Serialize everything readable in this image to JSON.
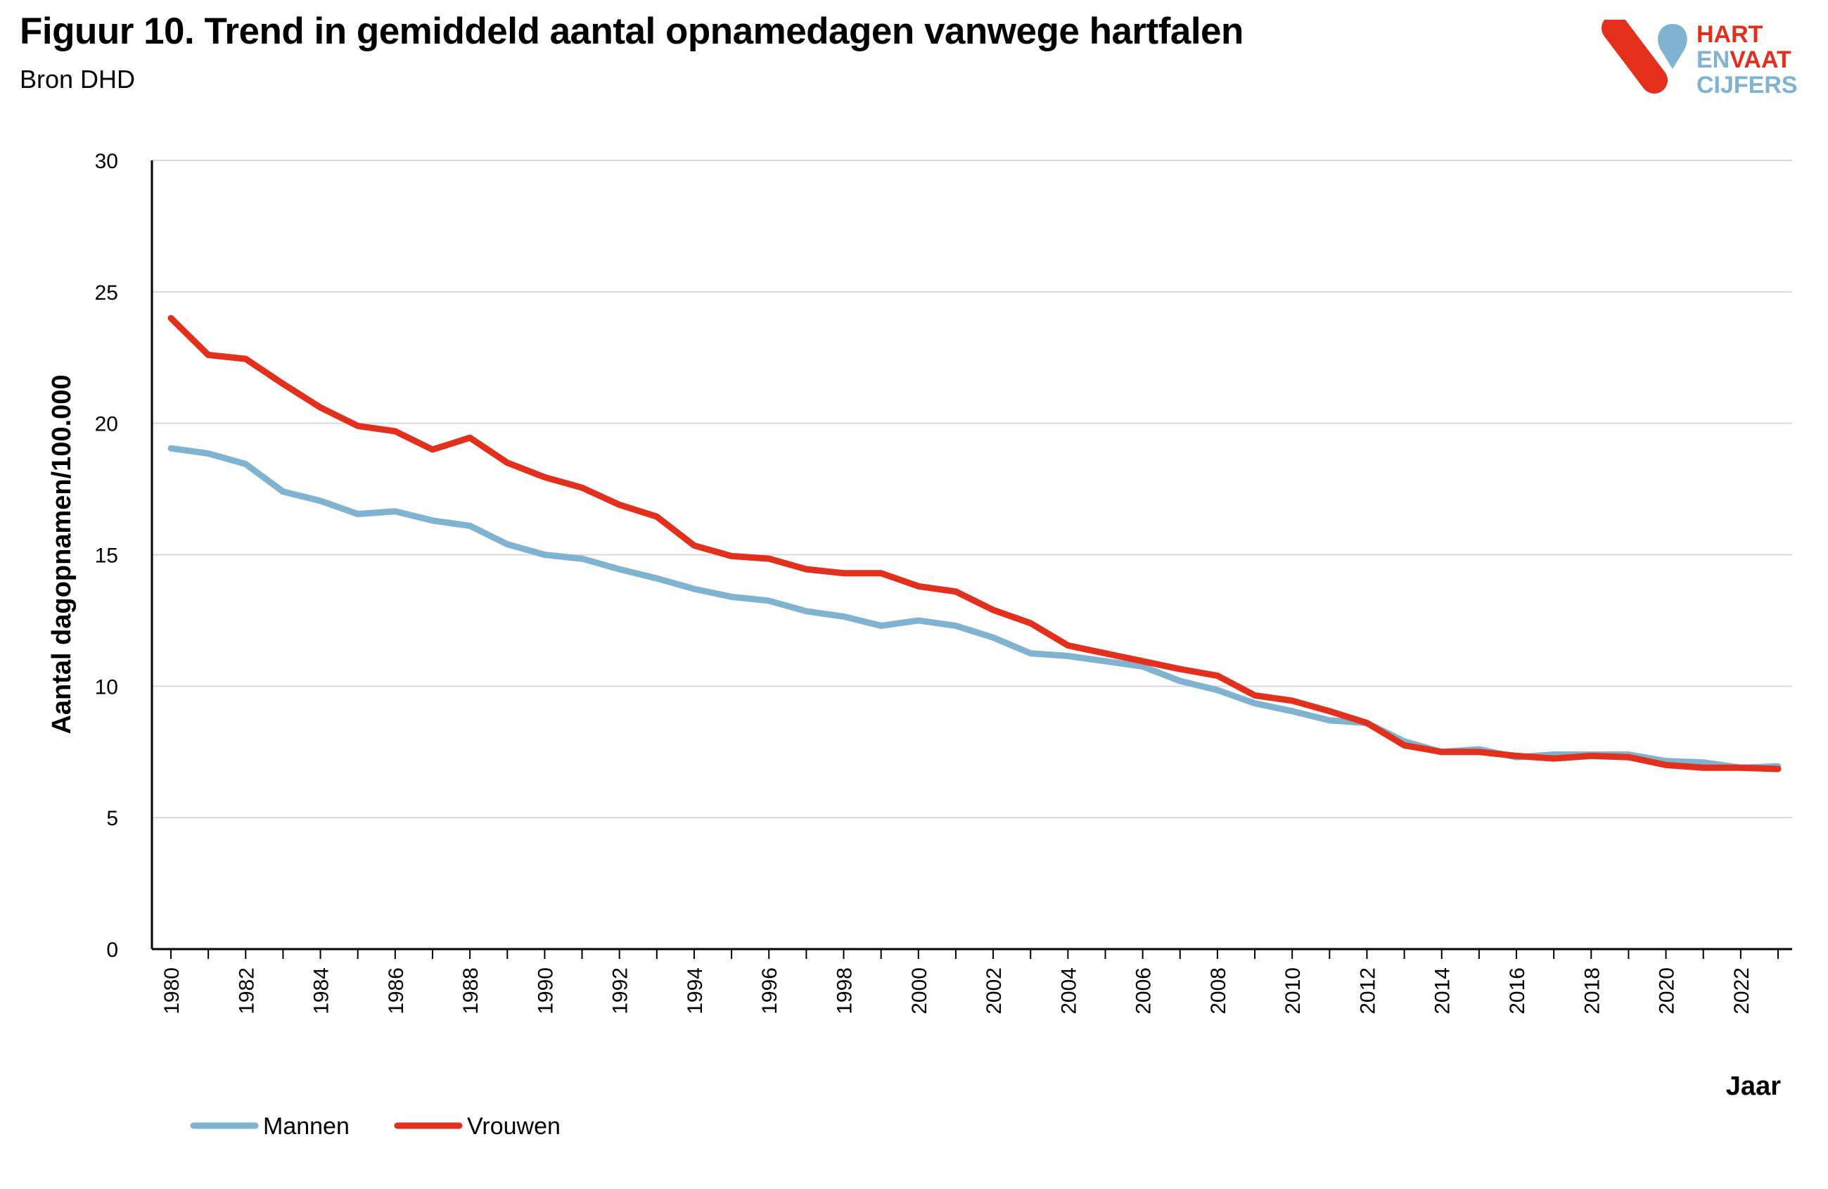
{
  "header": {
    "title": "Figuur 10. Trend in gemiddeld aantal opnamedagen vanwege hartfalen",
    "subtitle": "Bron DHD"
  },
  "logo": {
    "line1": "HART",
    "line2a": "EN",
    "line2b": "VAAT",
    "line3": "CIJFERS",
    "colors": {
      "red": "#e3301c",
      "blue": "#7fb3cf"
    }
  },
  "chart_data": {
    "type": "line",
    "ylabel": "Aantal dagopnamen/100.000",
    "xlabel": "Jaar",
    "ylim": [
      0,
      30
    ],
    "yticks": [
      0,
      5,
      10,
      15,
      20,
      25,
      30
    ],
    "grid": true,
    "legend_position": "bottom-left",
    "x": [
      1980,
      1981,
      1982,
      1983,
      1984,
      1985,
      1986,
      1987,
      1988,
      1989,
      1990,
      1991,
      1992,
      1993,
      1994,
      1995,
      1996,
      1997,
      1998,
      1999,
      2000,
      2001,
      2002,
      2003,
      2004,
      2005,
      2006,
      2007,
      2008,
      2009,
      2010,
      2011,
      2012,
      2013,
      2014,
      2015,
      2016,
      2017,
      2018,
      2019,
      2020,
      2021,
      2022,
      2023
    ],
    "xtick_labels": [
      "1980",
      "1982",
      "1984",
      "1986",
      "1988",
      "1990",
      "1992",
      "1994",
      "1996",
      "1998",
      "2000",
      "2002",
      "2004",
      "2006",
      "2008",
      "2010",
      "2012",
      "2014",
      "2016",
      "2018",
      "2020",
      "2022"
    ],
    "series": [
      {
        "name": "Mannen",
        "color": "#7fb3cf",
        "values": [
          19.05,
          18.85,
          18.45,
          17.4,
          17.05,
          16.55,
          16.65,
          16.3,
          16.1,
          15.4,
          15.0,
          14.85,
          14.45,
          14.1,
          13.7,
          13.4,
          13.25,
          12.85,
          12.65,
          12.3,
          12.5,
          12.3,
          11.85,
          11.25,
          11.15,
          10.95,
          10.75,
          10.2,
          9.85,
          9.35,
          9.05,
          8.7,
          8.6,
          7.9,
          7.5,
          7.6,
          7.3,
          7.4,
          7.4,
          7.4,
          7.15,
          7.1,
          6.9,
          6.95
        ]
      },
      {
        "name": "Vrouwen",
        "color": "#e3301c",
        "values": [
          24.0,
          22.6,
          22.45,
          21.5,
          20.6,
          19.9,
          19.7,
          19.0,
          19.45,
          18.5,
          17.95,
          17.55,
          16.9,
          16.45,
          15.35,
          14.95,
          14.85,
          14.45,
          14.3,
          14.3,
          13.8,
          13.6,
          12.9,
          12.4,
          11.55,
          11.25,
          10.95,
          10.65,
          10.4,
          9.65,
          9.45,
          9.05,
          8.6,
          7.75,
          7.5,
          7.5,
          7.35,
          7.25,
          7.35,
          7.3,
          7.0,
          6.9,
          6.9,
          6.85
        ]
      }
    ]
  }
}
